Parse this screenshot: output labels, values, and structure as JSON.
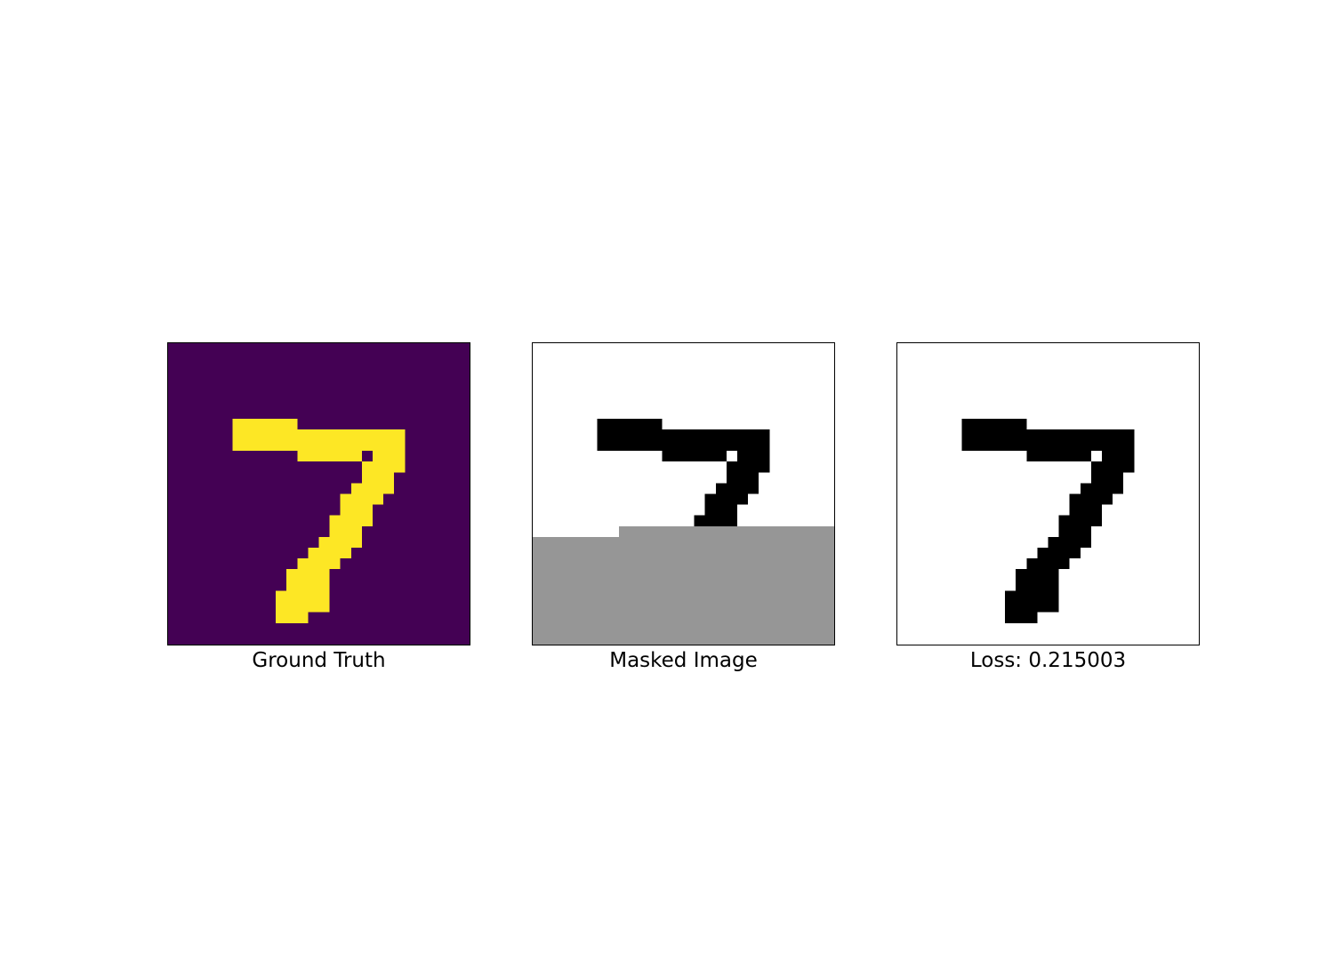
{
  "panels": [
    {
      "title": "Ground Truth",
      "colors": {
        "background": "#440154",
        "foreground": "#fde725",
        "mask": "#969696"
      },
      "show_mask": false
    },
    {
      "title": "Masked Image",
      "colors": {
        "background": "#ffffff",
        "foreground": "#000000",
        "mask": "#969696"
      },
      "show_mask": true
    },
    {
      "title": "Loss: 0.215003",
      "colors": {
        "background": "#ffffff",
        "foreground": "#000000",
        "mask": "#969696"
      },
      "show_mask": false
    }
  ],
  "digit_grid": {
    "size": 28,
    "on_runs": [
      [
        7,
        6,
        11
      ],
      [
        8,
        6,
        21
      ],
      [
        9,
        6,
        21
      ],
      [
        10,
        12,
        12
      ],
      [
        10,
        13,
        17
      ],
      [
        10,
        19,
        21
      ],
      [
        11,
        18,
        21
      ],
      [
        12,
        18,
        20
      ],
      [
        13,
        17,
        20
      ],
      [
        14,
        16,
        19
      ],
      [
        15,
        16,
        18
      ],
      [
        16,
        15,
        18
      ],
      [
        17,
        15,
        17
      ],
      [
        18,
        14,
        17
      ],
      [
        19,
        13,
        16
      ],
      [
        20,
        12,
        15
      ],
      [
        21,
        11,
        14
      ],
      [
        22,
        11,
        14
      ],
      [
        23,
        10,
        14
      ],
      [
        24,
        10,
        14
      ],
      [
        25,
        10,
        12
      ]
    ],
    "mask_cells": [
      {
        "row_start": 17,
        "col_start": 8,
        "col_end": 27
      },
      {
        "row_start": 18,
        "col_start": 0,
        "col_end": 27
      }
    ]
  }
}
